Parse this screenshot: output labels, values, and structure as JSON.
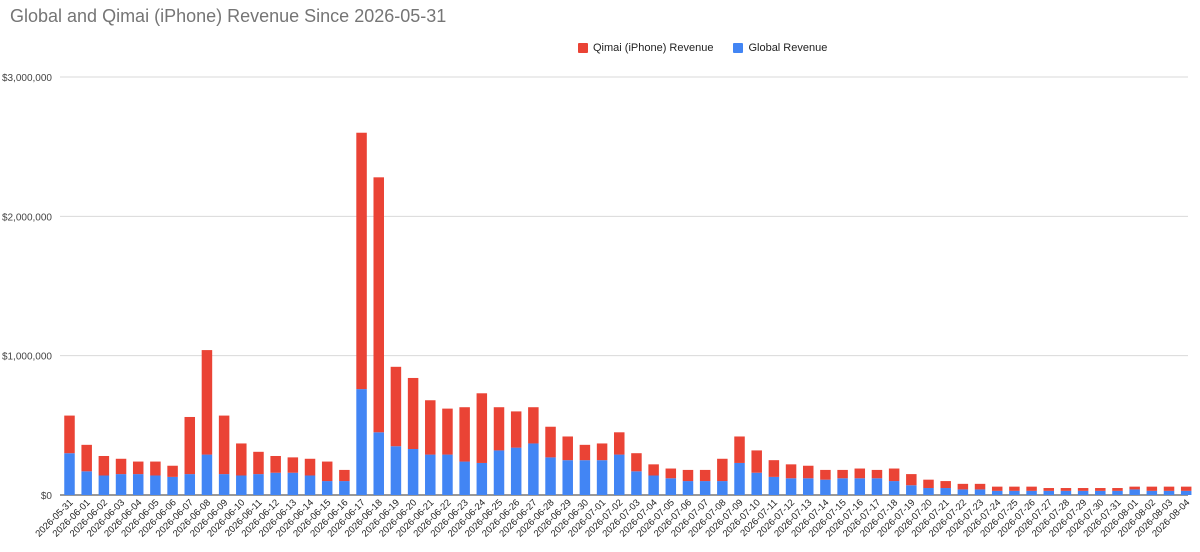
{
  "chart_data": {
    "type": "bar",
    "stacked": true,
    "title": "Global and Qimai (iPhone) Revenue Since 2026-05-31",
    "xlabel": "",
    "ylabel": "",
    "ylim": [
      0,
      3000000
    ],
    "yticks": [
      "$0",
      "$1,000,000",
      "$2,000,000",
      "$3,000,000"
    ],
    "ytick_values": [
      0,
      1000000,
      2000000,
      3000000
    ],
    "grid": true,
    "legend_position": "top",
    "categories": [
      "2026-05-31",
      "2026-06-01",
      "2026-06-02",
      "2026-06-03",
      "2026-06-04",
      "2026-06-05",
      "2026-06-06",
      "2026-06-07",
      "2026-06-08",
      "2026-06-09",
      "2026-06-10",
      "2026-06-11",
      "2026-06-12",
      "2026-06-13",
      "2026-06-14",
      "2026-06-15",
      "2026-06-16",
      "2026-06-17",
      "2026-06-18",
      "2026-06-19",
      "2026-06-20",
      "2026-06-21",
      "2026-06-22",
      "2026-06-23",
      "2026-06-24",
      "2026-06-25",
      "2026-06-26",
      "2026-06-27",
      "2026-06-28",
      "2026-06-29",
      "2026-06-30",
      "2026-07-01",
      "2026-07-02",
      "2026-07-03",
      "2026-07-04",
      "2026-07-05",
      "2026-07-06",
      "2026-07-07",
      "2026-07-08",
      "2026-07-09",
      "2026-07-10",
      "2026-07-11",
      "2026-07-12",
      "2026-07-13",
      "2026-07-14",
      "2026-07-15",
      "2026-07-16",
      "2026-07-17",
      "2026-07-18",
      "2026-07-19",
      "2026-07-20",
      "2026-07-21",
      "2026-07-22",
      "2026-07-23",
      "2026-07-24",
      "2026-07-25",
      "2026-07-26",
      "2026-07-27",
      "2026-07-28",
      "2026-07-29",
      "2026-07-30",
      "2026-07-31",
      "2026-08-01",
      "2026-08-02",
      "2026-08-03",
      "2026-08-04"
    ],
    "series": [
      {
        "name": "Global Revenue",
        "color": "#4285f4",
        "values": [
          300000,
          170000,
          140000,
          150000,
          150000,
          140000,
          130000,
          150000,
          290000,
          150000,
          140000,
          150000,
          160000,
          160000,
          140000,
          100000,
          100000,
          760000,
          450000,
          350000,
          330000,
          290000,
          290000,
          240000,
          230000,
          320000,
          340000,
          370000,
          270000,
          250000,
          250000,
          250000,
          290000,
          170000,
          140000,
          120000,
          100000,
          100000,
          100000,
          230000,
          160000,
          130000,
          120000,
          120000,
          110000,
          120000,
          120000,
          120000,
          100000,
          70000,
          50000,
          50000,
          40000,
          40000,
          30000,
          30000,
          30000,
          30000,
          30000,
          30000,
          30000,
          30000,
          40000,
          30000,
          30000,
          30000
        ]
      },
      {
        "name": "Qimai (iPhone) Revenue",
        "color": "#ea4335",
        "values": [
          270000,
          190000,
          140000,
          110000,
          90000,
          100000,
          80000,
          410000,
          750000,
          420000,
          230000,
          160000,
          120000,
          110000,
          120000,
          140000,
          80000,
          1840000,
          1830000,
          570000,
          510000,
          390000,
          330000,
          390000,
          500000,
          310000,
          260000,
          260000,
          220000,
          170000,
          110000,
          120000,
          160000,
          130000,
          80000,
          70000,
          80000,
          80000,
          160000,
          190000,
          160000,
          120000,
          100000,
          90000,
          70000,
          60000,
          70000,
          60000,
          90000,
          80000,
          60000,
          50000,
          40000,
          40000,
          30000,
          30000,
          30000,
          20000,
          20000,
          20000,
          20000,
          20000,
          20000,
          30000,
          30000,
          30000
        ]
      }
    ]
  }
}
